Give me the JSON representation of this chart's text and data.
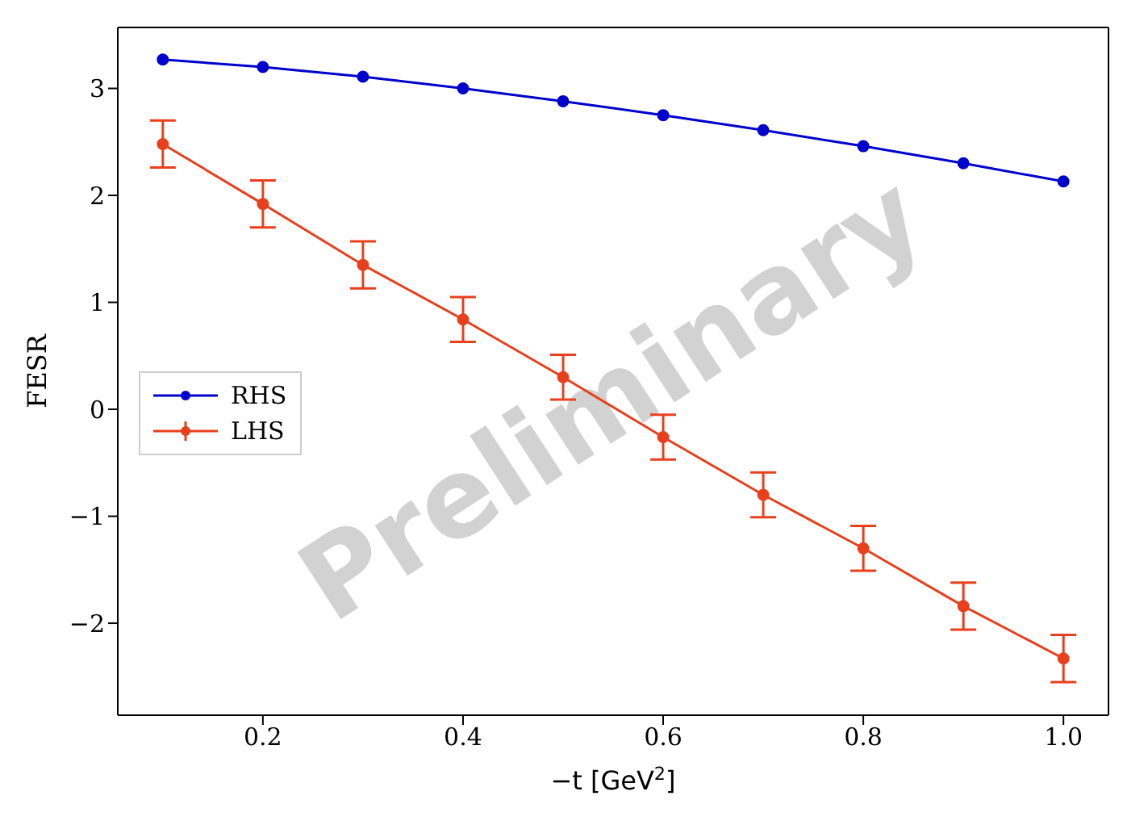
{
  "chart_data": {
    "type": "line",
    "xlabel": "−t [GeV$^{2}$]",
    "ylabel": "FESR",
    "x": [
      0.1,
      0.2,
      0.3,
      0.4,
      0.5,
      0.6,
      0.7,
      0.8,
      0.9,
      1.0
    ],
    "series": [
      {
        "name": "RHS",
        "color": "#0000cc",
        "values": [
          3.27,
          3.2,
          3.11,
          3.0,
          2.88,
          2.75,
          2.61,
          2.46,
          2.3,
          2.13
        ]
      },
      {
        "name": "LHS",
        "color": "#e8401c",
        "values": [
          2.48,
          1.92,
          1.35,
          0.84,
          0.3,
          -0.26,
          -0.8,
          -1.3,
          -1.84,
          -2.33
        ],
        "errors": [
          0.22,
          0.22,
          0.22,
          0.21,
          0.21,
          0.21,
          0.21,
          0.21,
          0.22,
          0.22
        ]
      }
    ],
    "xlim": [
      0.055,
      1.045
    ],
    "xticks": [
      0.2,
      0.4,
      0.6,
      0.8,
      {
        "value": 1,
        "label": "1.0"
      }
    ],
    "ylim": [
      -2.86,
      3.57
    ],
    "yticks": [
      -2,
      -1,
      0,
      1,
      2,
      3
    ],
    "marker": "circle",
    "legend": "left",
    "annotations": [
      "Preliminary"
    ]
  }
}
